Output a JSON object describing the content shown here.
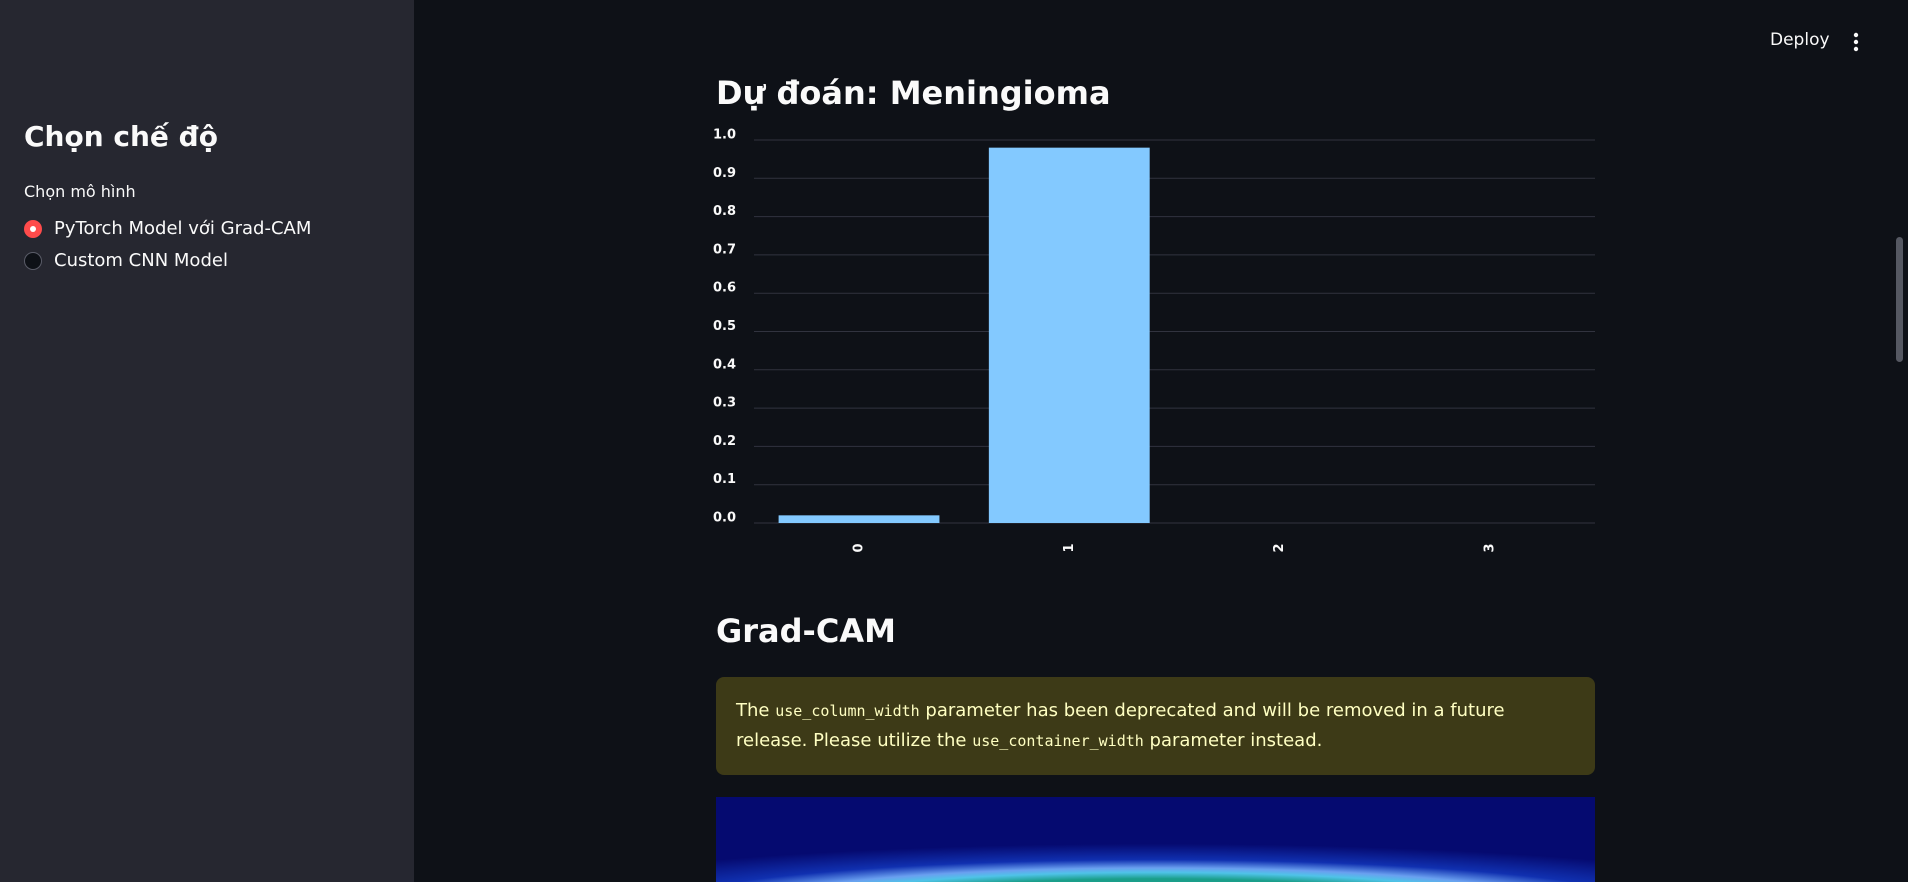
{
  "sidebar": {
    "heading": "Chọn chế độ",
    "radio_label": "Chọn mô hình",
    "options": [
      "PyTorch Model với Grad-CAM",
      "Custom CNN Model"
    ]
  },
  "toolbar": {
    "deploy": "Deploy"
  },
  "chart_data": {
    "type": "bar",
    "title": "Dự đoán: Meningioma",
    "categories": [
      "0",
      "1",
      "2",
      "3"
    ],
    "values": [
      0.02,
      0.98,
      0,
      0
    ],
    "color": "#83c9ff",
    "ylim": [
      0,
      1.0
    ],
    "yticks": [
      {
        "value": 0,
        "label": "0.0"
      },
      0.1,
      0.2,
      0.3,
      0.4,
      0.5,
      0.6,
      0.7,
      0.8,
      0.9,
      {
        "value": 1.0,
        "label": "1.0"
      }
    ],
    "grid": true
  },
  "section": {
    "heading": "Grad-CAM"
  },
  "warning": {
    "parts": [
      "The ",
      "use_column_width",
      " parameter has been deprecated and will be removed in a future release. Please utilize the ",
      "use_container_width",
      " parameter instead."
    ]
  }
}
